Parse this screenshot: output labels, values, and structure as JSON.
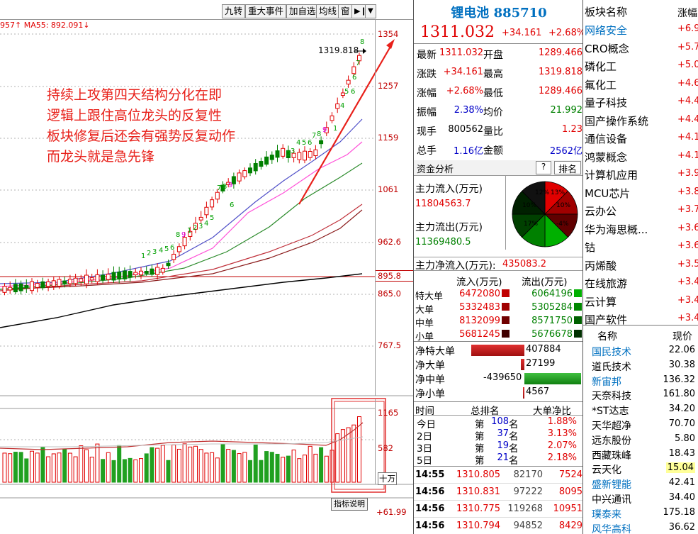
{
  "toolbar": {
    "buttons": [
      "九转",
      "重大事件",
      "加自选",
      "均线",
      "窗"
    ],
    "ma_label": "957↑ MA55: 892.091↓"
  },
  "price_axis": [
    "1354",
    "1257",
    "1159",
    "1061",
    "962.6",
    "895.8",
    "865.0",
    "767.5"
  ],
  "last_marker": "1319.818",
  "annotation": [
    "持续上攻第四天结构分化在即",
    "逻辑上跟住高位龙头的反复性",
    "板块修复后还会有强势反复动作",
    "而龙头就是急先锋"
  ],
  "vol_axis": [
    "1165",
    "582",
    "十万"
  ],
  "indicator_button": "指标说明",
  "bottom_value": "+61.99",
  "quote": {
    "name": "锂电池",
    "code": "885710",
    "price": "1311.032",
    "change": "+34.161",
    "change_pct": "+2.68%",
    "rows": [
      {
        "l1": "最新",
        "v1": "1311.032",
        "l2": "开盘",
        "v2": "1289.466"
      },
      {
        "l1": "涨跌",
        "v1": "+34.161",
        "l2": "最高",
        "v2": "1319.818"
      },
      {
        "l1": "涨幅",
        "v1": "+2.68%",
        "l2": "最低",
        "v2": "1289.466"
      },
      {
        "l1": "振幅",
        "v1": "2.38%",
        "l2": "均价",
        "v2": "21.992"
      },
      {
        "l1": "现手",
        "v1": "800562",
        "l2": "量比",
        "v2": "1.23"
      },
      {
        "l1": "总手",
        "v1": "1.16亿",
        "l2": "金额",
        "v2": "2562亿"
      }
    ],
    "fund_title": "资金分析",
    "fund_help": "?",
    "fund_rank": "排名",
    "inflow_label": "主力流入(万元)",
    "inflow_value": "11804563.7",
    "outflow_label": "主力流出(万元)",
    "outflow_value": "11369480.5",
    "net_label": "主力净流入(万元):",
    "net_value": "435083.2",
    "pie_labels": [
      "12%",
      "13%",
      "10%",
      "10%",
      "17%",
      "-4%"
    ],
    "flow_header": {
      "c1": "流入(万元)",
      "c2": "流出(万元)"
    },
    "flows": [
      {
        "label": "特大单",
        "in": "6472080",
        "out": "6064196"
      },
      {
        "label": "大单",
        "in": "5332483",
        "out": "5305284"
      },
      {
        "label": "中单",
        "in": "8132099",
        "out": "8571750"
      },
      {
        "label": "小单",
        "in": "5681245",
        "out": "5676678"
      }
    ],
    "nets": [
      {
        "label": "净特大单",
        "value": "407884",
        "ratio": 0.94
      },
      {
        "label": "净大单",
        "value": "27199",
        "ratio": 0.06
      },
      {
        "label": "净中单",
        "value": "-439650",
        "ratio": -1.0
      },
      {
        "label": "净小单",
        "value": "4567",
        "ratio": 0.01
      }
    ],
    "rank_header": {
      "c1": "时间",
      "c2": "总排名",
      "c3": "大单净比"
    },
    "ranks": [
      {
        "period": "今日",
        "pre": "第",
        "rank": "108",
        "suf": "名",
        "ratio": "1.88%"
      },
      {
        "period": "2日",
        "pre": "第",
        "rank": "37",
        "suf": "名",
        "ratio": "3.13%"
      },
      {
        "period": "3日",
        "pre": "第",
        "rank": "19",
        "suf": "名",
        "ratio": "2.07%"
      },
      {
        "period": "5日",
        "pre": "第",
        "rank": "21",
        "suf": "名",
        "ratio": "2.18%"
      }
    ],
    "ticks": [
      {
        "time": "14:55",
        "price": "1310.805",
        "vol": "82170",
        "amt": "7524"
      },
      {
        "time": "14:56",
        "price": "1310.831",
        "vol": "97222",
        "amt": "8095"
      },
      {
        "time": "14:56",
        "price": "1310.775",
        "vol": "119268",
        "amt": "10951"
      },
      {
        "time": "14:56",
        "price": "1310.794",
        "vol": "94852",
        "amt": "8429"
      }
    ]
  },
  "sectors": {
    "header_name": "板块名称",
    "header_val": "涨幅",
    "items": [
      {
        "name": "网络安全",
        "value": "+6.9",
        "link": true
      },
      {
        "name": "CRO概念",
        "value": "+5.7",
        "link": false
      },
      {
        "name": "磷化工",
        "value": "+5.0",
        "link": false
      },
      {
        "name": "氟化工",
        "value": "+4.6",
        "link": false
      },
      {
        "name": "量子科技",
        "value": "+4.4",
        "link": false
      },
      {
        "name": "国产操作系统",
        "value": "+4.4",
        "link": false
      },
      {
        "name": "通信设备",
        "value": "+4.1",
        "link": false
      },
      {
        "name": "鸿蒙概念",
        "value": "+4.1",
        "link": false
      },
      {
        "name": "计算机应用",
        "value": "+3.9",
        "link": false
      },
      {
        "name": "MCU芯片",
        "value": "+3.8",
        "link": false
      },
      {
        "name": "云办公",
        "value": "+3.7",
        "link": false
      },
      {
        "name": "华为海思概...",
        "value": "+3.6",
        "link": false
      },
      {
        "name": "钴",
        "value": "+3.6",
        "link": false
      },
      {
        "name": "丙烯酸",
        "value": "+3.5",
        "link": false
      },
      {
        "name": "在线旅游",
        "value": "+3.4",
        "link": false
      },
      {
        "name": "云计算",
        "value": "+3.4",
        "link": false
      },
      {
        "name": "国产软件",
        "value": "+3.4",
        "link": false
      }
    ]
  },
  "stocks": {
    "header_name": "名称",
    "header_val": "现价",
    "items": [
      {
        "name": "国民技术",
        "value": "22.06",
        "link": true,
        "hl": false
      },
      {
        "name": "道氏技术",
        "value": "30.38",
        "link": false,
        "hl": false
      },
      {
        "name": "新宙邦",
        "value": "136.32",
        "link": true,
        "hl": false
      },
      {
        "name": "天奈科技",
        "value": "161.80",
        "link": false,
        "hl": false
      },
      {
        "name": "*ST达志",
        "value": "34.20",
        "link": false,
        "hl": false
      },
      {
        "name": "天华超净",
        "value": "70.70",
        "link": false,
        "hl": false
      },
      {
        "name": "远东股份",
        "value": "5.80",
        "link": false,
        "hl": false
      },
      {
        "name": "西藏珠峰",
        "value": "18.43",
        "link": false,
        "hl": false
      },
      {
        "name": "云天化",
        "value": "15.04",
        "link": false,
        "hl": true
      },
      {
        "name": "盛新锂能",
        "value": "42.41",
        "link": true,
        "hl": false
      },
      {
        "name": "中兴通讯",
        "value": "34.40",
        "link": false,
        "hl": false
      },
      {
        "name": "璞泰来",
        "value": "175.18",
        "link": true,
        "hl": false
      },
      {
        "name": "风华高科",
        "value": "36.62",
        "link": true,
        "hl": false
      }
    ]
  },
  "colors": {
    "up": "#e00000",
    "down": "#008000",
    "link": "#0070c0",
    "annotation": "#e8201a"
  }
}
